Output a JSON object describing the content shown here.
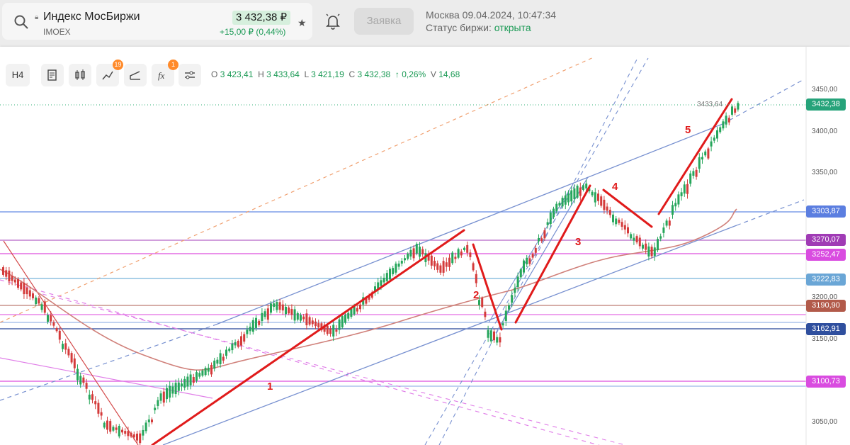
{
  "header": {
    "ticker_name": "Индекс МосБиржи",
    "ticker_code": "IMOEX",
    "price": "3 432,38 ₽",
    "change": "+15,00 ₽ (0,44%)",
    "order_button": "Заявка",
    "datetime": "Москва 09.04.2024, 10:47:34",
    "status_label": "Статус биржи:",
    "status_value": "открыта",
    "icons": [
      "search-icon",
      "lock-icon",
      "star-icon",
      "bell-icon"
    ]
  },
  "toolbar": {
    "timeframe": "H4",
    "indicator_badge": "19",
    "fx_badge": "1",
    "icons": [
      "report-icon",
      "candles-icon",
      "indicators-icon",
      "drawing-icon",
      "function-icon",
      "settings-icon"
    ]
  },
  "ohlc": {
    "o_label": "O",
    "o": "3 423,41",
    "h_label": "H",
    "h": "3 433,64",
    "l_label": "L",
    "l": "3 421,19",
    "c_label": "C",
    "c": "3 432,38",
    "change": "↑ 0,26%",
    "v_label": "V",
    "v": "14,68"
  },
  "chart": {
    "high_label": "3433,64",
    "axis_ticks": [
      "3450,00",
      "3400,00",
      "3350,00",
      "3200,00",
      "3150,00",
      "3050,00"
    ],
    "price_labels": [
      {
        "text": "3432,38",
        "color": "#26a37a"
      },
      {
        "text": "3303,87",
        "color": "#5b7ee0"
      },
      {
        "text": "3270,07",
        "color": "#a03bb5"
      },
      {
        "text": "3252,47",
        "color": "#d94ce0"
      },
      {
        "text": "3222,83",
        "color": "#6aa6d6"
      },
      {
        "text": "3190,90",
        "color": "#b25a4a"
      },
      {
        "text": "3162,91",
        "color": "#2f4f9e"
      },
      {
        "text": "3100,73",
        "color": "#d94ce0"
      }
    ],
    "waves": [
      "1",
      "2",
      "3",
      "4",
      "5"
    ],
    "colors": {
      "up": "#26a65b",
      "down": "#d43b3b",
      "wave": "#e01b1b",
      "channel": "#6d86c9"
    }
  }
}
